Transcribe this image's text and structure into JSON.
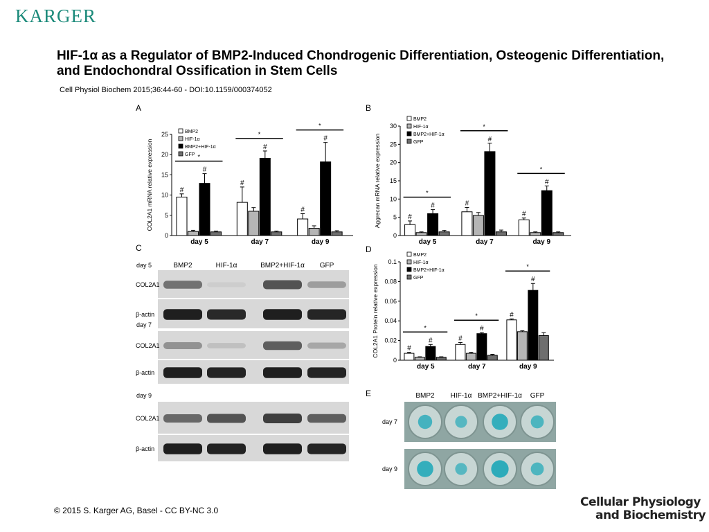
{
  "header": {
    "publisher_logo": "KARGER",
    "title": "HIF-1α as a Regulator of BMP2-Induced Chondrogenic Differentiation, Osteogenic Differentiation, and Endochondral Ossification in Stem Cells",
    "citation": "Cell Physiol Biochem 2015;36:44-60 -  DOI:10.1159/000374052"
  },
  "footer": {
    "copyright": "© 2015 S. Karger AG, Basel - CC BY-NC 3.0",
    "journal_line1": "Cellular Physiology",
    "journal_line2": "and Biochemistry"
  },
  "colors": {
    "brand": "#1b8a7a",
    "bmp2": "#ffffff",
    "hif": "#b5b5b5",
    "combo": "#000000",
    "gfp": "#6e6e6e",
    "stain": "#1fa8b8"
  },
  "chart_data": [
    {
      "panel": "A",
      "type": "bar",
      "ylabel": "COL2A1 mRNA relative expression",
      "categories": [
        "day 5",
        "day 7",
        "day 9"
      ],
      "ylim": [
        0,
        25
      ],
      "yticks": [
        0,
        5,
        10,
        15,
        20,
        25
      ],
      "legend": [
        "BMP2",
        "HIF-1α",
        "BMP2+HIF-1α",
        "GFP"
      ],
      "series": [
        {
          "name": "BMP2",
          "values": [
            9.5,
            8.2,
            4.1
          ],
          "errors": [
            0.8,
            3.8,
            1.3
          ],
          "marks": [
            "#",
            "#",
            "#"
          ]
        },
        {
          "name": "HIF-1α",
          "values": [
            1.0,
            6.0,
            1.8
          ],
          "errors": [
            0.3,
            0.9,
            0.6
          ],
          "marks": [
            "",
            "",
            ""
          ]
        },
        {
          "name": "BMP2+HIF-1α",
          "values": [
            12.9,
            19.1,
            18.2
          ],
          "errors": [
            2.4,
            1.8,
            4.8
          ],
          "marks": [
            "#",
            "#",
            "#"
          ]
        },
        {
          "name": "GFP",
          "values": [
            0.9,
            0.9,
            0.9
          ],
          "errors": [
            0.2,
            0.2,
            0.3
          ],
          "marks": [
            "",
            "",
            ""
          ]
        }
      ],
      "significance": "*"
    },
    {
      "panel": "B",
      "type": "bar",
      "ylabel": "Aggrecan mRNA relative expression",
      "categories": [
        "day 5",
        "day 7",
        "day 9"
      ],
      "ylim": [
        0,
        30
      ],
      "yticks": [
        0,
        5,
        10,
        15,
        20,
        25,
        30
      ],
      "legend": [
        "BMP2",
        "HIF-1α",
        "BMP2+HIF-1α",
        "GFP"
      ],
      "series": [
        {
          "name": "BMP2",
          "values": [
            3.0,
            6.5,
            4.3
          ],
          "errors": [
            1.0,
            1.2,
            0.5
          ],
          "marks": [
            "#",
            "#",
            "#"
          ]
        },
        {
          "name": "HIF-1α",
          "values": [
            0.8,
            5.5,
            0.8
          ],
          "errors": [
            0.2,
            0.8,
            0.2
          ],
          "marks": [
            "",
            "",
            ""
          ]
        },
        {
          "name": "BMP2+HIF-1α",
          "values": [
            6.0,
            23.0,
            12.3
          ],
          "errors": [
            1.1,
            2.3,
            1.3
          ],
          "marks": [
            "#",
            "#",
            "#"
          ]
        },
        {
          "name": "GFP",
          "values": [
            1.0,
            1.0,
            0.8
          ],
          "errors": [
            0.4,
            0.5,
            0.2
          ],
          "marks": [
            "",
            "",
            ""
          ]
        }
      ],
      "significance": "*"
    },
    {
      "panel": "D",
      "type": "bar",
      "ylabel": "COL2A1 Protein relative expression",
      "categories": [
        "day 5",
        "day 7",
        "day 9"
      ],
      "ylim": [
        0,
        0.1
      ],
      "yticks": [
        "0",
        "0.02",
        "0.04",
        "0.06",
        "0.08",
        "0.1"
      ],
      "legend": [
        "BMP2",
        "HIF-1α",
        "BMP2+HIF-1α",
        "GFP"
      ],
      "series": [
        {
          "name": "BMP2",
          "values": [
            0.007,
            0.016,
            0.041
          ],
          "errors": [
            0.001,
            0.002,
            0.001
          ],
          "marks": [
            "#",
            "#",
            "#"
          ]
        },
        {
          "name": "HIF-1α",
          "values": [
            0.003,
            0.007,
            0.029
          ],
          "errors": [
            0.0005,
            0.001,
            0.001
          ],
          "marks": [
            "",
            "",
            ""
          ]
        },
        {
          "name": "BMP2+HIF-1α",
          "values": [
            0.014,
            0.027,
            0.071
          ],
          "errors": [
            0.002,
            0.001,
            0.007
          ],
          "marks": [
            "#",
            "#",
            "#"
          ]
        },
        {
          "name": "GFP",
          "values": [
            0.003,
            0.005,
            0.025
          ],
          "errors": [
            0.0005,
            0.001,
            0.003
          ],
          "marks": [
            "",
            "",
            ""
          ]
        }
      ],
      "significance": "*"
    }
  ],
  "panel_c": {
    "label": "C",
    "columns": [
      "BMP2",
      "HIF-1α",
      "BMP2+HIF-1α",
      "GFP"
    ],
    "blocks": [
      {
        "day": "day 5",
        "rows": [
          {
            "label": "COL2A1",
            "intensity": [
              0.55,
              0.12,
              0.7,
              0.35
            ]
          },
          {
            "label": "β-actin",
            "intensity": [
              0.95,
              0.9,
              0.95,
              0.92
            ]
          }
        ]
      },
      {
        "day": "day 7",
        "rows": [
          {
            "label": "COL2A1",
            "intensity": [
              0.4,
              0.18,
              0.65,
              0.3
            ]
          },
          {
            "label": "β-actin",
            "intensity": [
              0.95,
              0.93,
              0.95,
              0.93
            ]
          }
        ]
      },
      {
        "day": "day 9",
        "rows": [
          {
            "label": "COL2A1",
            "intensity": [
              0.6,
              0.7,
              0.8,
              0.65
            ]
          },
          {
            "label": "β-actin",
            "intensity": [
              0.95,
              0.93,
              0.95,
              0.92
            ]
          }
        ]
      }
    ]
  },
  "panel_e": {
    "label": "E",
    "columns": [
      "BMP2",
      "HIF-1α",
      "BMP2+HIF-1α",
      "GFP"
    ],
    "rows": [
      {
        "day": "day 7",
        "stain": [
          0.65,
          0.45,
          0.85,
          0.55
        ]
      },
      {
        "day": "day 9",
        "stain": [
          0.85,
          0.45,
          0.95,
          0.55
        ]
      }
    ]
  }
}
